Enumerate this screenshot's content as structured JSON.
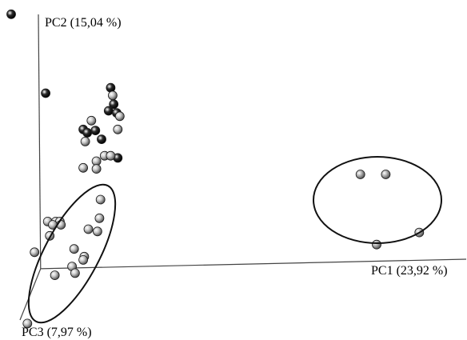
{
  "chart_data": {
    "type": "scatter",
    "title": "",
    "axes": {
      "pc1_label": "PC1 (23,92 %)",
      "pc2_label": "PC2 (15,04 %)",
      "pc3_label": "PC3 (7,97 %)"
    },
    "xlim": [
      -4,
      42
    ],
    "ylim": [
      -6.5,
      24.5
    ],
    "legend": "none",
    "grid": false,
    "series": [
      {
        "color": "#2b2b2b",
        "points": [
          {
            "x": -2.9,
            "y": 23.2
          },
          {
            "x": 0.5,
            "y": 16.0
          },
          {
            "x": 6.9,
            "y": 16.5
          },
          {
            "x": 7.2,
            "y": 15.0
          },
          {
            "x": 6.7,
            "y": 14.4
          },
          {
            "x": 7.5,
            "y": 14.2
          },
          {
            "x": 4.2,
            "y": 12.7
          },
          {
            "x": 4.6,
            "y": 12.4
          },
          {
            "x": 5.4,
            "y": 12.6
          },
          {
            "x": 6.0,
            "y": 11.8
          },
          {
            "x": 7.6,
            "y": 10.1
          }
        ]
      },
      {
        "color": "#c8c8c8",
        "points": [
          {
            "x": 7.1,
            "y": 15.8
          },
          {
            "x": 7.8,
            "y": 13.9
          },
          {
            "x": 5.0,
            "y": 13.5
          },
          {
            "x": 7.6,
            "y": 12.7
          },
          {
            "x": 4.4,
            "y": 11.6
          },
          {
            "x": 5.5,
            "y": 9.8
          },
          {
            "x": 6.3,
            "y": 10.3
          },
          {
            "x": 6.9,
            "y": 10.3
          },
          {
            "x": 4.2,
            "y": 9.2
          },
          {
            "x": 5.5,
            "y": 9.1
          },
          {
            "x": 5.9,
            "y": 6.3
          },
          {
            "x": 5.8,
            "y": 4.6
          },
          {
            "x": 4.7,
            "y": 3.6
          },
          {
            "x": 5.6,
            "y": 3.4
          },
          {
            "x": 0.7,
            "y": 4.3
          },
          {
            "x": 1.5,
            "y": 4.3
          },
          {
            "x": 1.9,
            "y": 4.3
          },
          {
            "x": 2.0,
            "y": 4.0
          },
          {
            "x": 1.2,
            "y": 4.0
          },
          {
            "x": 0.9,
            "y": 3.0
          },
          {
            "x": 3.3,
            "y": 1.8
          },
          {
            "x": 4.3,
            "y": 1.1
          },
          {
            "x": 4.2,
            "y": 0.8
          },
          {
            "x": -0.6,
            "y": 1.5
          },
          {
            "x": 3.1,
            "y": 0.2
          },
          {
            "x": 3.4,
            "y": -0.4
          },
          {
            "x": 1.4,
            "y": -0.6
          },
          {
            "x": -1.3,
            "y": -5.0
          }
        ]
      },
      {
        "color": "#b4b4b4",
        "points": [
          {
            "x": 31.5,
            "y": 8.6
          },
          {
            "x": 34.0,
            "y": 8.6
          },
          {
            "x": 37.3,
            "y": 3.3
          },
          {
            "x": 33.1,
            "y": 2.2
          }
        ]
      }
    ]
  }
}
